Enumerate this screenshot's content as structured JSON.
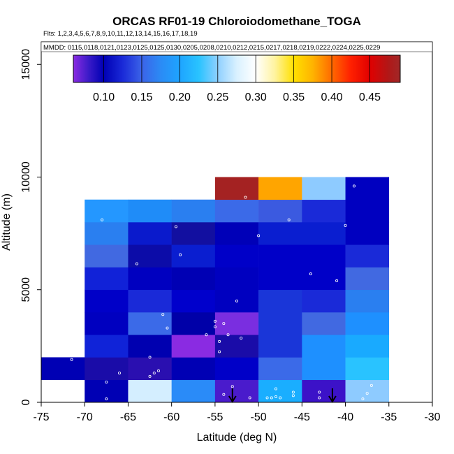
{
  "chart_data": {
    "type": "heatmap",
    "title": "ORCAS RF01-19 Chloroiodomethane_TOGA",
    "flights_note": "Flts: 1,2,3,4,5,6,7,8,9,10,11,12,13,14,15,16,17,18,19",
    "dates_note": "MMDD: 0115,0118,0121,0123,0125,0125,0130,0205,0208,0210,0212,0215,0217,0218,0219,0222,0224,0225,0229",
    "xlabel": "Latitude (deg N)",
    "ylabel": "Altitude (m)",
    "xlim": [
      -75,
      -30
    ],
    "ylim": [
      0,
      16000
    ],
    "x_ticks": [
      -75,
      -70,
      -65,
      -60,
      -55,
      -50,
      -45,
      -40,
      -35,
      -30
    ],
    "x_tick_labels": [
      "-75",
      "-70",
      "-65",
      "-60",
      "-55",
      "-50",
      "-45",
      "-40",
      "-35",
      "-30"
    ],
    "y_ticks": [
      0,
      5000,
      10000,
      15000
    ],
    "y_tick_labels": [
      "0",
      "5000",
      "10000",
      "15000"
    ],
    "colorbar": {
      "range": [
        0.06,
        0.49
      ],
      "ticks": [
        0.1,
        0.15,
        0.2,
        0.25,
        0.3,
        0.35,
        0.4,
        0.45
      ],
      "tick_labels": [
        "0.10",
        "0.15",
        "0.20",
        "0.25",
        "0.30",
        "0.35",
        "0.40",
        "0.45"
      ],
      "stops": [
        {
          "v": 0.06,
          "color": "#8a2be2"
        },
        {
          "v": 0.08,
          "color": "#3b1bc8"
        },
        {
          "v": 0.1,
          "color": "#0000b4"
        },
        {
          "v": 0.125,
          "color": "#1a2ad8"
        },
        {
          "v": 0.15,
          "color": "#3b63e8"
        },
        {
          "v": 0.175,
          "color": "#2b8bf5"
        },
        {
          "v": 0.2,
          "color": "#1ea4ff"
        },
        {
          "v": 0.225,
          "color": "#29c3ff"
        },
        {
          "v": 0.25,
          "color": "#8fd0ff"
        },
        {
          "v": 0.275,
          "color": "#d9f1ff"
        },
        {
          "v": 0.3,
          "color": "#ffffff"
        },
        {
          "v": 0.325,
          "color": "#fff3a0"
        },
        {
          "v": 0.35,
          "color": "#ffe000"
        },
        {
          "v": 0.375,
          "color": "#ffb300"
        },
        {
          "v": 0.4,
          "color": "#ff6a00"
        },
        {
          "v": 0.425,
          "color": "#ff2000"
        },
        {
          "v": 0.45,
          "color": "#e00000"
        },
        {
          "v": 0.475,
          "color": "#b01818"
        },
        {
          "v": 0.49,
          "color": "#a02828"
        }
      ]
    },
    "cell_size": {
      "lat": 5,
      "alt_m": 1000
    },
    "cells": [
      {
        "lat": -75,
        "alt": 1000,
        "color": "#0000b4"
      },
      {
        "lat": -70,
        "alt": 0,
        "color": "#0000b4"
      },
      {
        "lat": -70,
        "alt": 1000,
        "color": "#1a0ca8"
      },
      {
        "lat": -70,
        "alt": 2000,
        "color": "#1023d8"
      },
      {
        "lat": -70,
        "alt": 3000,
        "color": "#0000c0"
      },
      {
        "lat": -70,
        "alt": 4000,
        "color": "#0000c8"
      },
      {
        "lat": -70,
        "alt": 5000,
        "color": "#1122d8"
      },
      {
        "lat": -70,
        "alt": 6000,
        "color": "#4169e1"
      },
      {
        "lat": -70,
        "alt": 7000,
        "color": "#2a7ff0"
      },
      {
        "lat": -70,
        "alt": 8000,
        "color": "#2497ff"
      },
      {
        "lat": -65,
        "alt": 0,
        "color": "#d4eeff"
      },
      {
        "lat": -65,
        "alt": 1000,
        "color": "#2a0fb0"
      },
      {
        "lat": -65,
        "alt": 2000,
        "color": "#0000b0"
      },
      {
        "lat": -65,
        "alt": 3000,
        "color": "#3b6ae8"
      },
      {
        "lat": -65,
        "alt": 4000,
        "color": "#1a2ad8"
      },
      {
        "lat": -65,
        "alt": 5000,
        "color": "#0000c0"
      },
      {
        "lat": -65,
        "alt": 6000,
        "color": "#0c0ca8"
      },
      {
        "lat": -65,
        "alt": 7000,
        "color": "#0a1acc"
      },
      {
        "lat": -65,
        "alt": 8000,
        "color": "#1f8cf8"
      },
      {
        "lat": -60,
        "alt": 0,
        "color": "#2a8bf8"
      },
      {
        "lat": -60,
        "alt": 1000,
        "color": "#0000b4"
      },
      {
        "lat": -60,
        "alt": 2000,
        "color": "#8a2be2"
      },
      {
        "lat": -60,
        "alt": 3000,
        "color": "#0000a8"
      },
      {
        "lat": -60,
        "alt": 4000,
        "color": "#0000cc"
      },
      {
        "lat": -60,
        "alt": 5000,
        "color": "#0000b4"
      },
      {
        "lat": -60,
        "alt": 6000,
        "color": "#0a1ed0"
      },
      {
        "lat": -60,
        "alt": 7000,
        "color": "#120fa0"
      },
      {
        "lat": -60,
        "alt": 8000,
        "color": "#2a7ff0"
      },
      {
        "lat": -55,
        "alt": 0,
        "color": "#4a1bcc"
      },
      {
        "lat": -55,
        "alt": 1000,
        "color": "#0000c8"
      },
      {
        "lat": -55,
        "alt": 2000,
        "color": "#1a0ca8"
      },
      {
        "lat": -55,
        "alt": 3000,
        "color": "#7a2ee0"
      },
      {
        "lat": -55,
        "alt": 4000,
        "color": "#0000c0"
      },
      {
        "lat": -55,
        "alt": 5000,
        "color": "#0000c0"
      },
      {
        "lat": -55,
        "alt": 6000,
        "color": "#0000c8"
      },
      {
        "lat": -55,
        "alt": 7000,
        "color": "#0000b8"
      },
      {
        "lat": -55,
        "alt": 8000,
        "color": "#3b6ae8"
      },
      {
        "lat": -55,
        "alt": 9000,
        "color": "#a42222"
      },
      {
        "lat": -50,
        "alt": 0,
        "color": "#1aaeff"
      },
      {
        "lat": -50,
        "alt": 1000,
        "color": "#3b6ae8"
      },
      {
        "lat": -50,
        "alt": 2000,
        "color": "#1a36d8"
      },
      {
        "lat": -50,
        "alt": 3000,
        "color": "#1a36d8"
      },
      {
        "lat": -50,
        "alt": 4000,
        "color": "#1a36d8"
      },
      {
        "lat": -50,
        "alt": 5000,
        "color": "#0000c8"
      },
      {
        "lat": -50,
        "alt": 6000,
        "color": "#0000c8"
      },
      {
        "lat": -50,
        "alt": 7000,
        "color": "#0a1ed0"
      },
      {
        "lat": -50,
        "alt": 8000,
        "color": "#3b5ae0"
      },
      {
        "lat": -50,
        "alt": 9000,
        "color": "#ffa500"
      },
      {
        "lat": -45,
        "alt": 0,
        "color": "#3c12c8"
      },
      {
        "lat": -45,
        "alt": 1000,
        "color": "#1e90ff"
      },
      {
        "lat": -45,
        "alt": 2000,
        "color": "#1e90ff"
      },
      {
        "lat": -45,
        "alt": 3000,
        "color": "#4169e1"
      },
      {
        "lat": -45,
        "alt": 4000,
        "color": "#1a2ad8"
      },
      {
        "lat": -45,
        "alt": 5000,
        "color": "#0000c8"
      },
      {
        "lat": -45,
        "alt": 6000,
        "color": "#0000c8"
      },
      {
        "lat": -45,
        "alt": 7000,
        "color": "#0a1ed0"
      },
      {
        "lat": -45,
        "alt": 8000,
        "color": "#1a2ad8"
      },
      {
        "lat": -45,
        "alt": 9000,
        "color": "#8ecbff"
      },
      {
        "lat": -40,
        "alt": 0,
        "color": "#8ecbff"
      },
      {
        "lat": -40,
        "alt": 1000,
        "color": "#29c3ff"
      },
      {
        "lat": -40,
        "alt": 2000,
        "color": "#19aaff"
      },
      {
        "lat": -40,
        "alt": 3000,
        "color": "#1e90ff"
      },
      {
        "lat": -40,
        "alt": 4000,
        "color": "#2a7ff0"
      },
      {
        "lat": -40,
        "alt": 5000,
        "color": "#4169e1"
      },
      {
        "lat": -40,
        "alt": 6000,
        "color": "#1a2ad8"
      },
      {
        "lat": -40,
        "alt": 7000,
        "color": "#0000c0"
      },
      {
        "lat": -40,
        "alt": 8000,
        "color": "#0000c0"
      },
      {
        "lat": -40,
        "alt": 9000,
        "color": "#0000c0"
      }
    ],
    "samples": [
      [
        -71.5,
        1900
      ],
      [
        -68,
        8100
      ],
      [
        -67.5,
        900
      ],
      [
        -67.5,
        150
      ],
      [
        -66,
        1300
      ],
      [
        -64,
        6150
      ],
      [
        -62.5,
        2000
      ],
      [
        -62.5,
        1150
      ],
      [
        -62,
        1300
      ],
      [
        -61.5,
        1400
      ],
      [
        -61,
        3900
      ],
      [
        -60.5,
        3300
      ],
      [
        -59.5,
        7800
      ],
      [
        -59,
        6550
      ],
      [
        -56,
        3000
      ],
      [
        -55,
        3600
      ],
      [
        -55,
        3350
      ],
      [
        -54.5,
        2700
      ],
      [
        -54.5,
        2250
      ],
      [
        -54,
        3500
      ],
      [
        -53.5,
        3000
      ],
      [
        -54,
        350
      ],
      [
        -53,
        700
      ],
      [
        -52.5,
        4500
      ],
      [
        -52,
        2850
      ],
      [
        -51.5,
        9100
      ],
      [
        -51,
        200
      ],
      [
        -50,
        7400
      ],
      [
        -49,
        200
      ],
      [
        -48.5,
        200
      ],
      [
        -48,
        250
      ],
      [
        -48,
        600
      ],
      [
        -47.5,
        200
      ],
      [
        -46.5,
        8100
      ],
      [
        -46,
        450
      ],
      [
        -46,
        300
      ],
      [
        -44,
        5700
      ],
      [
        -43,
        200
      ],
      [
        -43,
        450
      ],
      [
        -41,
        5400
      ],
      [
        -40,
        7850
      ],
      [
        -39,
        9600
      ],
      [
        -37,
        750
      ],
      [
        -37.5,
        400
      ],
      [
        -38,
        150
      ]
    ],
    "arrows": [
      {
        "lat": -53,
        "alt": 0
      },
      {
        "lat": -41.5,
        "alt": 0
      }
    ]
  }
}
